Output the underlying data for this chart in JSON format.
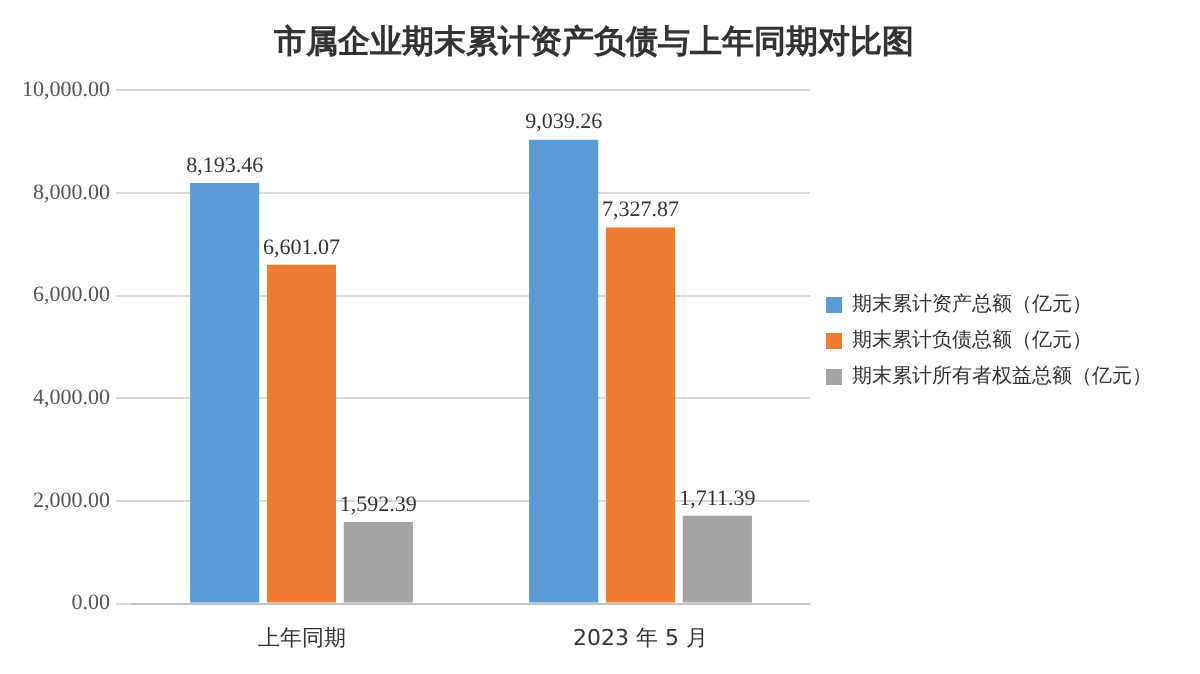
{
  "chart_data": {
    "type": "bar",
    "title": "市属企业期末累计资产负债与上年同期对比图",
    "categories": [
      "上年同期",
      "2023 年 5 月"
    ],
    "series": [
      {
        "name": "期末累计资产总额（亿元）",
        "color": "#5b9bd5",
        "values": [
          8193.46,
          9039.26
        ],
        "value_labels": [
          "8,193.46",
          "9,039.26"
        ]
      },
      {
        "name": "期末累计负债总额（亿元）",
        "color": "#ed7d31",
        "values": [
          6601.07,
          7327.87
        ],
        "value_labels": [
          "6,601.07",
          "7,327.87"
        ]
      },
      {
        "name": "期末累计所有者权益总额（亿元）",
        "color": "#a5a5a5",
        "values": [
          1592.39,
          1711.39
        ],
        "value_labels": [
          "1,592.39",
          "1,711.39"
        ]
      }
    ],
    "ylim": [
      0,
      10000
    ],
    "yticks": [
      {
        "value": 0,
        "label": "0.00"
      },
      {
        "value": 2000,
        "label": "2,000.00"
      },
      {
        "value": 4000,
        "label": "4,000.00"
      },
      {
        "value": 6000,
        "label": "6,000.00"
      },
      {
        "value": 8000,
        "label": "8,000.00"
      },
      {
        "value": 10000,
        "label": "10,000.00"
      }
    ],
    "grid": "y",
    "legend": "right"
  }
}
